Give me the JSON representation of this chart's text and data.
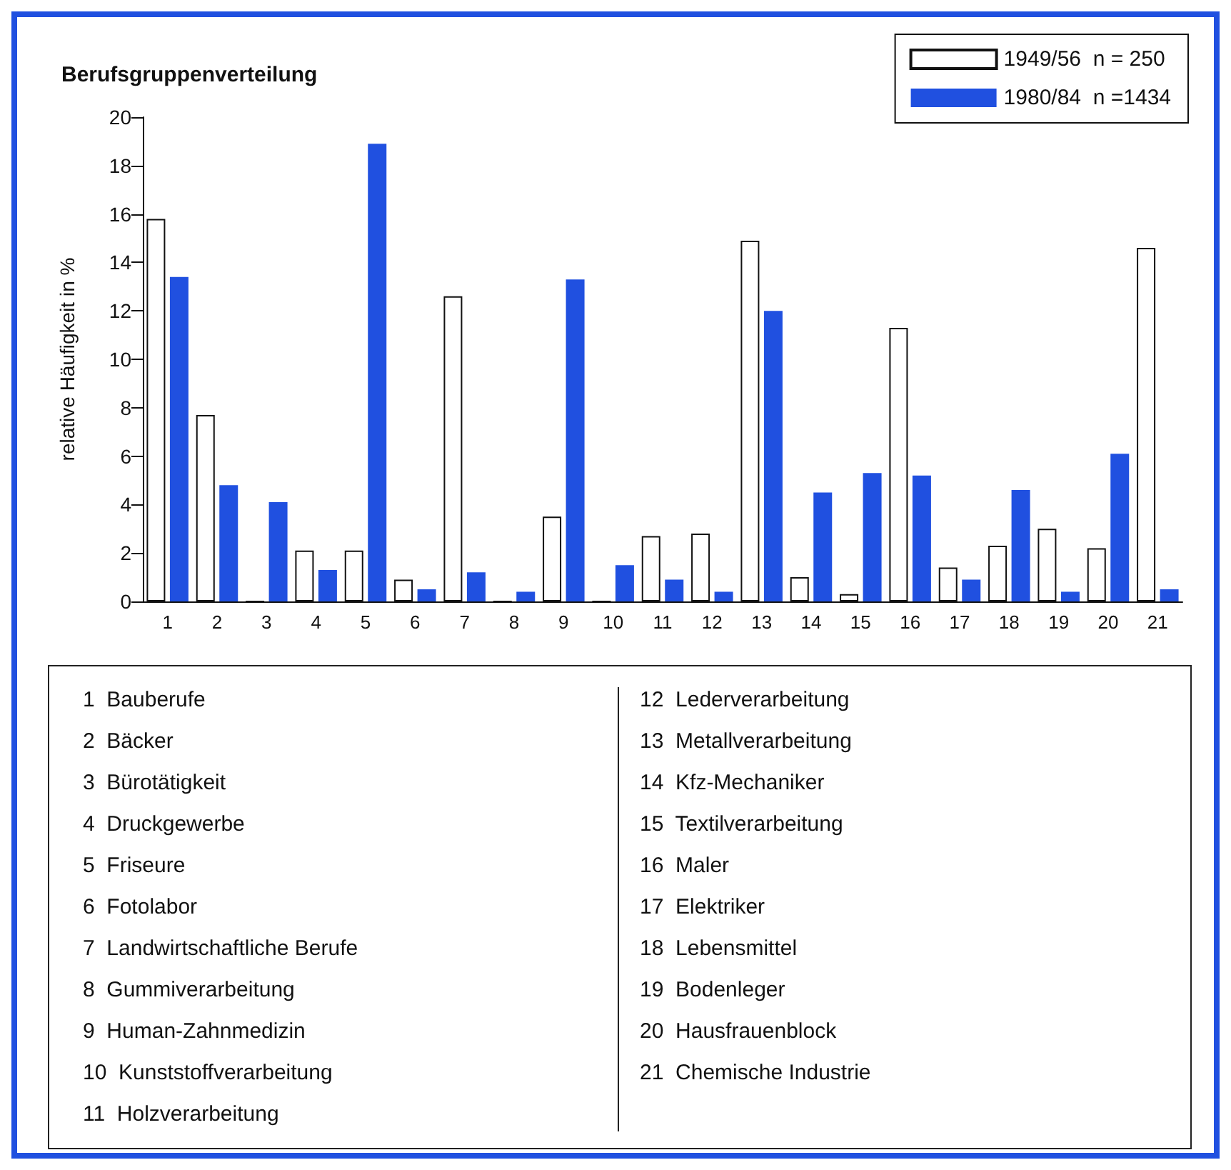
{
  "chart_data": {
    "type": "bar",
    "title": "Berufsgruppenverteilung",
    "ylabel": "relative Häufigkeit in %",
    "categories": [
      "1",
      "2",
      "3",
      "4",
      "5",
      "6",
      "7",
      "8",
      "9",
      "10",
      "11",
      "12",
      "13",
      "14",
      "15",
      "16",
      "17",
      "18",
      "19",
      "20",
      "21"
    ],
    "series": [
      {
        "name": "1949/56  n = 250",
        "color": "#ffffff",
        "values": [
          15.8,
          7.7,
          0,
          2.1,
          2.1,
          0.9,
          12.6,
          0,
          3.5,
          0,
          2.7,
          2.8,
          14.9,
          1.0,
          0.3,
          11.3,
          1.4,
          2.3,
          3.0,
          2.2,
          14.6
        ]
      },
      {
        "name": "1980/84  n =1434",
        "color": "#2050e0",
        "values": [
          13.4,
          4.8,
          4.1,
          1.3,
          18.9,
          0.5,
          1.2,
          0.4,
          13.3,
          1.5,
          0.9,
          0.4,
          12.0,
          4.5,
          5.3,
          5.2,
          0.9,
          4.6,
          0.4,
          6.1,
          0.5
        ]
      }
    ],
    "ylim": [
      0,
      20
    ],
    "yticks": [
      0,
      2,
      4,
      6,
      8,
      10,
      12,
      14,
      16,
      18,
      20
    ],
    "grid": false,
    "legend": "top right",
    "annotations": [
      "1  Bauberufe",
      "2  Bäcker",
      "3  Bürotätigkeit",
      "4  Druckgewerbe",
      "5  Friseure",
      "6  Fotolabor",
      "7  Landwirtschaftliche Berufe",
      "8  Gummiverarbeitung",
      "9  Human-Zahnmedizin",
      "10  Kunststoffverarbeitung",
      "11  Holzverarbeitung",
      "12  Lederverarbeitung",
      "13  Metallverarbeitung",
      "14  Kfz-Mechaniker",
      "15  Textilverarbeitung",
      "16  Maler",
      "17  Elektriker",
      "18  Lebensmittel",
      "19  Bodenleger",
      "20  Hausfrauenblock",
      "21  Chemische Industrie"
    ]
  }
}
